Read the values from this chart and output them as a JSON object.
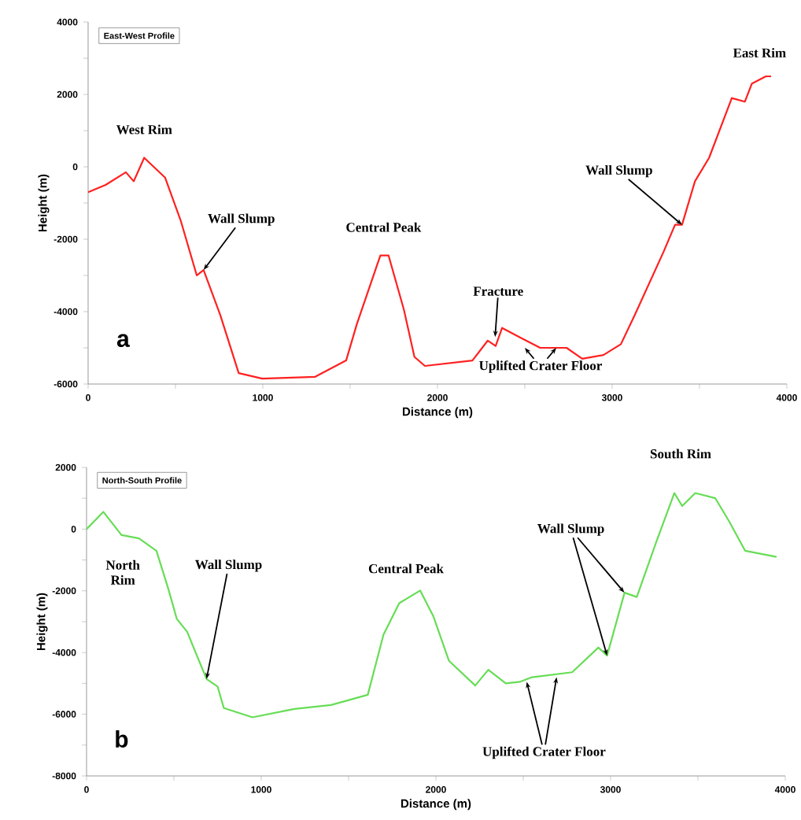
{
  "chart_data": [
    {
      "type": "line",
      "title": "East-West Profile",
      "xlabel": "Distance (m)",
      "ylabel": "Height (m)",
      "color": "#ff2020",
      "x": [
        0,
        100,
        216,
        261,
        321,
        441,
        531,
        622,
        661,
        757,
        862,
        997,
        1300,
        1477,
        1538,
        1673,
        1720,
        1808,
        1868,
        1928,
        2200,
        2288,
        2333,
        2370,
        2468,
        2588,
        2739,
        2829,
        2950,
        3050,
        3129,
        3294,
        3360,
        3400,
        3474,
        3555,
        3685,
        3760,
        3800,
        3880,
        3910
      ],
      "values": [
        -700,
        -500,
        -150,
        -400,
        250,
        -300,
        -1500,
        -3000,
        -2850,
        -4100,
        -5700,
        -5850,
        -5800,
        -5350,
        -4350,
        -2450,
        -2450,
        -3950,
        -5250,
        -5500,
        -5350,
        -4800,
        -4950,
        -4450,
        -4700,
        -5000,
        -5000,
        -5300,
        -5200,
        -4900,
        -4100,
        -2350,
        -1600,
        -1600,
        -400,
        250,
        1900,
        1800,
        2300,
        2500,
        2500
      ],
      "xlim": [
        0,
        4000
      ],
      "ylim": [
        -6000,
        4000
      ],
      "xticks": [
        0,
        {
          "value": 500,
          "label": null
        },
        1000,
        {
          "value": 1500,
          "label": null
        },
        2000,
        {
          "value": 2500,
          "label": null
        },
        3000,
        {
          "value": 3500,
          "label": null
        },
        4000
      ],
      "yticks": [
        -6000,
        {
          "value": -5000,
          "label": null
        },
        -4000,
        {
          "value": -3000,
          "label": null
        },
        -2000,
        {
          "value": -1000,
          "label": null
        },
        0,
        {
          "value": 1000,
          "label": null
        },
        2000,
        {
          "value": 3000,
          "label": null
        },
        4000
      ],
      "annotations": [
        {
          "text": "West Rim",
          "x": 321,
          "y": 250
        },
        {
          "text": "Wall Slump",
          "x": 661,
          "y": -2850
        },
        {
          "text": "Central Peak",
          "x": 1673,
          "y": -2450
        },
        {
          "text": "Fracture",
          "x": 2330,
          "y": -4700
        },
        {
          "text": "Uplifted Crater Floor",
          "x": 2590,
          "y": -5000
        },
        {
          "text": "Wall Slump",
          "x": 3400,
          "y": -1600
        },
        {
          "text": "East Rim",
          "x": 3880,
          "y": 2500
        },
        "a"
      ]
    },
    {
      "type": "line",
      "title": "North-South Profile",
      "xlabel": "Distance (m)",
      "ylabel": "Height (m)",
      "color": "#66dd55",
      "x": [
        0,
        96,
        200,
        300,
        400,
        470,
        516,
        576,
        687,
        750,
        786,
        950,
        1190,
        1400,
        1610,
        1700,
        1790,
        1910,
        1985,
        2075,
        2225,
        2300,
        2400,
        2480,
        2550,
        2780,
        2930,
        2980,
        3080,
        3150,
        3260,
        3365,
        3410,
        3485,
        3600,
        3680,
        3770,
        3950
      ],
      "values": [
        0,
        560,
        -190,
        -300,
        -700,
        -1970,
        -2900,
        -3330,
        -4860,
        -5100,
        -5800,
        -6100,
        -5830,
        -5700,
        -5370,
        -3420,
        -2400,
        -1990,
        -2820,
        -4270,
        -5070,
        -4560,
        -5000,
        -4950,
        -4800,
        -4640,
        -3840,
        -4100,
        -2060,
        -2200,
        -440,
        1170,
        750,
        1170,
        1000,
        240,
        -700,
        -900
      ],
      "xlim": [
        0,
        4000
      ],
      "ylim": [
        -8000,
        2000
      ],
      "xticks": [
        0,
        {
          "value": 500,
          "label": null
        },
        1000,
        {
          "value": 1500,
          "label": null
        },
        2000,
        {
          "value": 2500,
          "label": null
        },
        3000,
        {
          "value": 3500,
          "label": null
        },
        4000
      ],
      "yticks": [
        -8000,
        {
          "value": -7000,
          "label": null
        },
        -6000,
        {
          "value": -5000,
          "label": null
        },
        -4000,
        {
          "value": -3000,
          "label": null
        },
        -2000,
        {
          "value": -1000,
          "label": null
        },
        0,
        {
          "value": 1000,
          "label": null
        },
        2000
      ],
      "annotations": [
        "North Rim",
        {
          "text": "Wall Slump",
          "x": 687,
          "y": -4860
        },
        {
          "text": "Central Peak",
          "x": 1910,
          "y": -1990
        },
        {
          "text": "Wall Slump",
          "x": 2980,
          "y": -4100
        },
        {
          "text": "Uplifted Crater Floor",
          "x": 2520,
          "y": -4950
        },
        {
          "text": "South Rim",
          "x": 3365,
          "y": 1170
        },
        "b"
      ]
    }
  ]
}
